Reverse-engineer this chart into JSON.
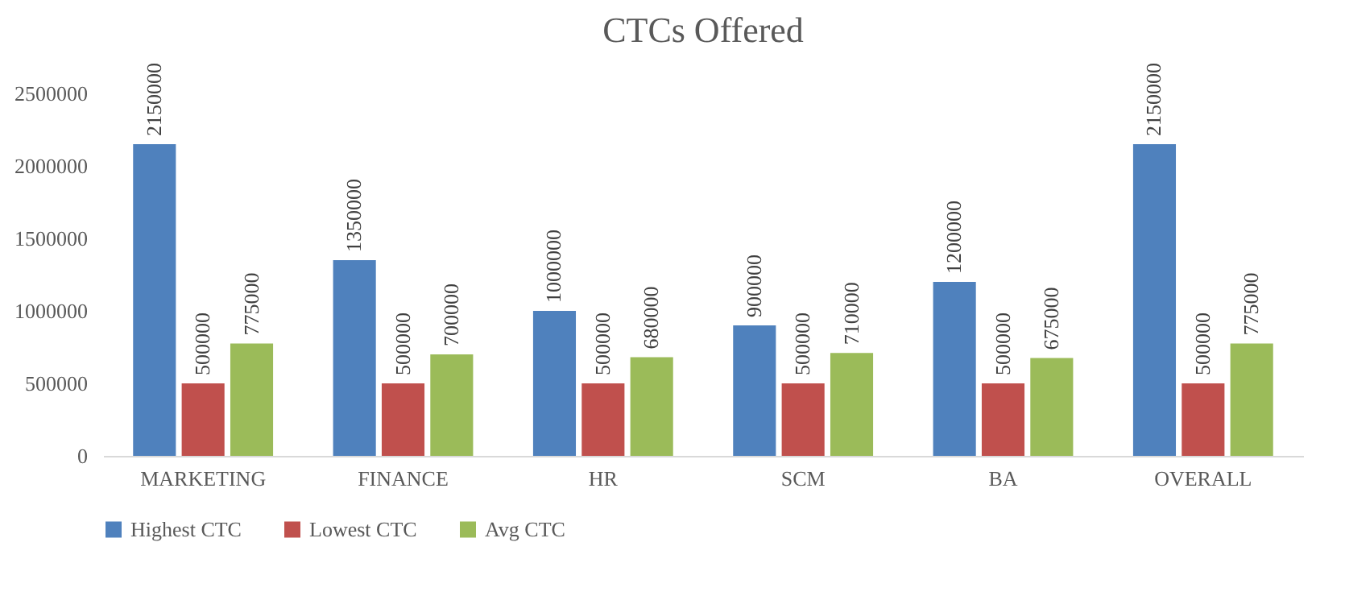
{
  "chart_data": {
    "type": "bar",
    "title": "CTCs Offered",
    "categories": [
      "MARKETING",
      "FINANCE",
      "HR",
      "SCM",
      "BA",
      "OVERALL"
    ],
    "series": [
      {
        "name": "Highest CTC",
        "color": "#4f81bd",
        "values": [
          2150000,
          1350000,
          1000000,
          900000,
          1200000,
          2150000
        ]
      },
      {
        "name": "Lowest CTC",
        "color": "#c0504d",
        "values": [
          500000,
          500000,
          500000,
          500000,
          500000,
          500000
        ]
      },
      {
        "name": "Avg CTC",
        "color": "#9bbb59",
        "values": [
          775000,
          700000,
          680000,
          710000,
          675000,
          775000
        ]
      }
    ],
    "ylim": [
      0,
      2500000
    ],
    "yticks": [
      0,
      500000,
      1000000,
      1500000,
      2000000,
      2500000
    ],
    "grid": false,
    "legend": "bottom",
    "data_labels": true
  }
}
